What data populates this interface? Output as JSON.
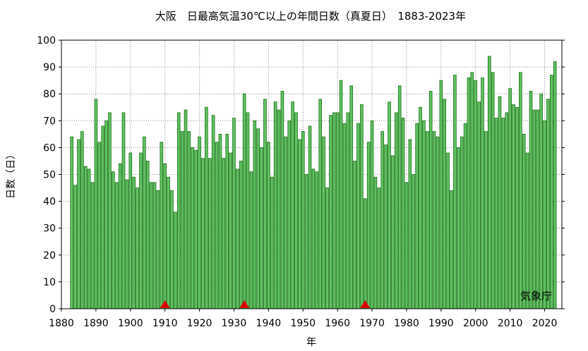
{
  "chart_data": {
    "type": "bar",
    "title": "大阪　日最高気温30℃以上の年間日数（真夏日）　1883-2023年",
    "xlabel": "年",
    "ylabel": "日数（日）",
    "source": "気象庁",
    "xlim": [
      1880,
      2025
    ],
    "ylim": [
      0,
      100
    ],
    "x_ticks": [
      1880,
      1890,
      1900,
      1910,
      1920,
      1930,
      1940,
      1950,
      1960,
      1970,
      1980,
      1990,
      2000,
      2010,
      2020
    ],
    "y_ticks": [
      0,
      10,
      20,
      30,
      40,
      50,
      60,
      70,
      80,
      90,
      100
    ],
    "grid": true,
    "bar_color": "#5fc35f",
    "bar_edge_color": "#1c6e1c",
    "marker_color": "#dd0000",
    "markers": [
      1910,
      1933,
      1968
    ],
    "start_year": 1883,
    "values": [
      64,
      46,
      63,
      66,
      53,
      52,
      47,
      78,
      62,
      68,
      70,
      73,
      51,
      47,
      54,
      73,
      48,
      58,
      49,
      45,
      58,
      64,
      55,
      47,
      47,
      44,
      62,
      54,
      49,
      44,
      36,
      73,
      66,
      74,
      66,
      60,
      59,
      64,
      56,
      75,
      56,
      72,
      62,
      65,
      56,
      65,
      58,
      71,
      52,
      55,
      80,
      73,
      51,
      70,
      67,
      60,
      78,
      62,
      49,
      77,
      74,
      81,
      64,
      70,
      77,
      73,
      63,
      66,
      50,
      68,
      52,
      51,
      78,
      64,
      45,
      72,
      73,
      73,
      85,
      69,
      73,
      83,
      55,
      69,
      76,
      41,
      62,
      70,
      49,
      45,
      66,
      61,
      77,
      57,
      73,
      83,
      71,
      47,
      63,
      50,
      69,
      75,
      70,
      66,
      81,
      66,
      64,
      85,
      78,
      58,
      44,
      87,
      60,
      64,
      69,
      86,
      88,
      85,
      77,
      86,
      66,
      94,
      88,
      71,
      79,
      71,
      73,
      82,
      76,
      75,
      88,
      65,
      58,
      81,
      74,
      74,
      80,
      70,
      78,
      87,
      92
    ]
  }
}
